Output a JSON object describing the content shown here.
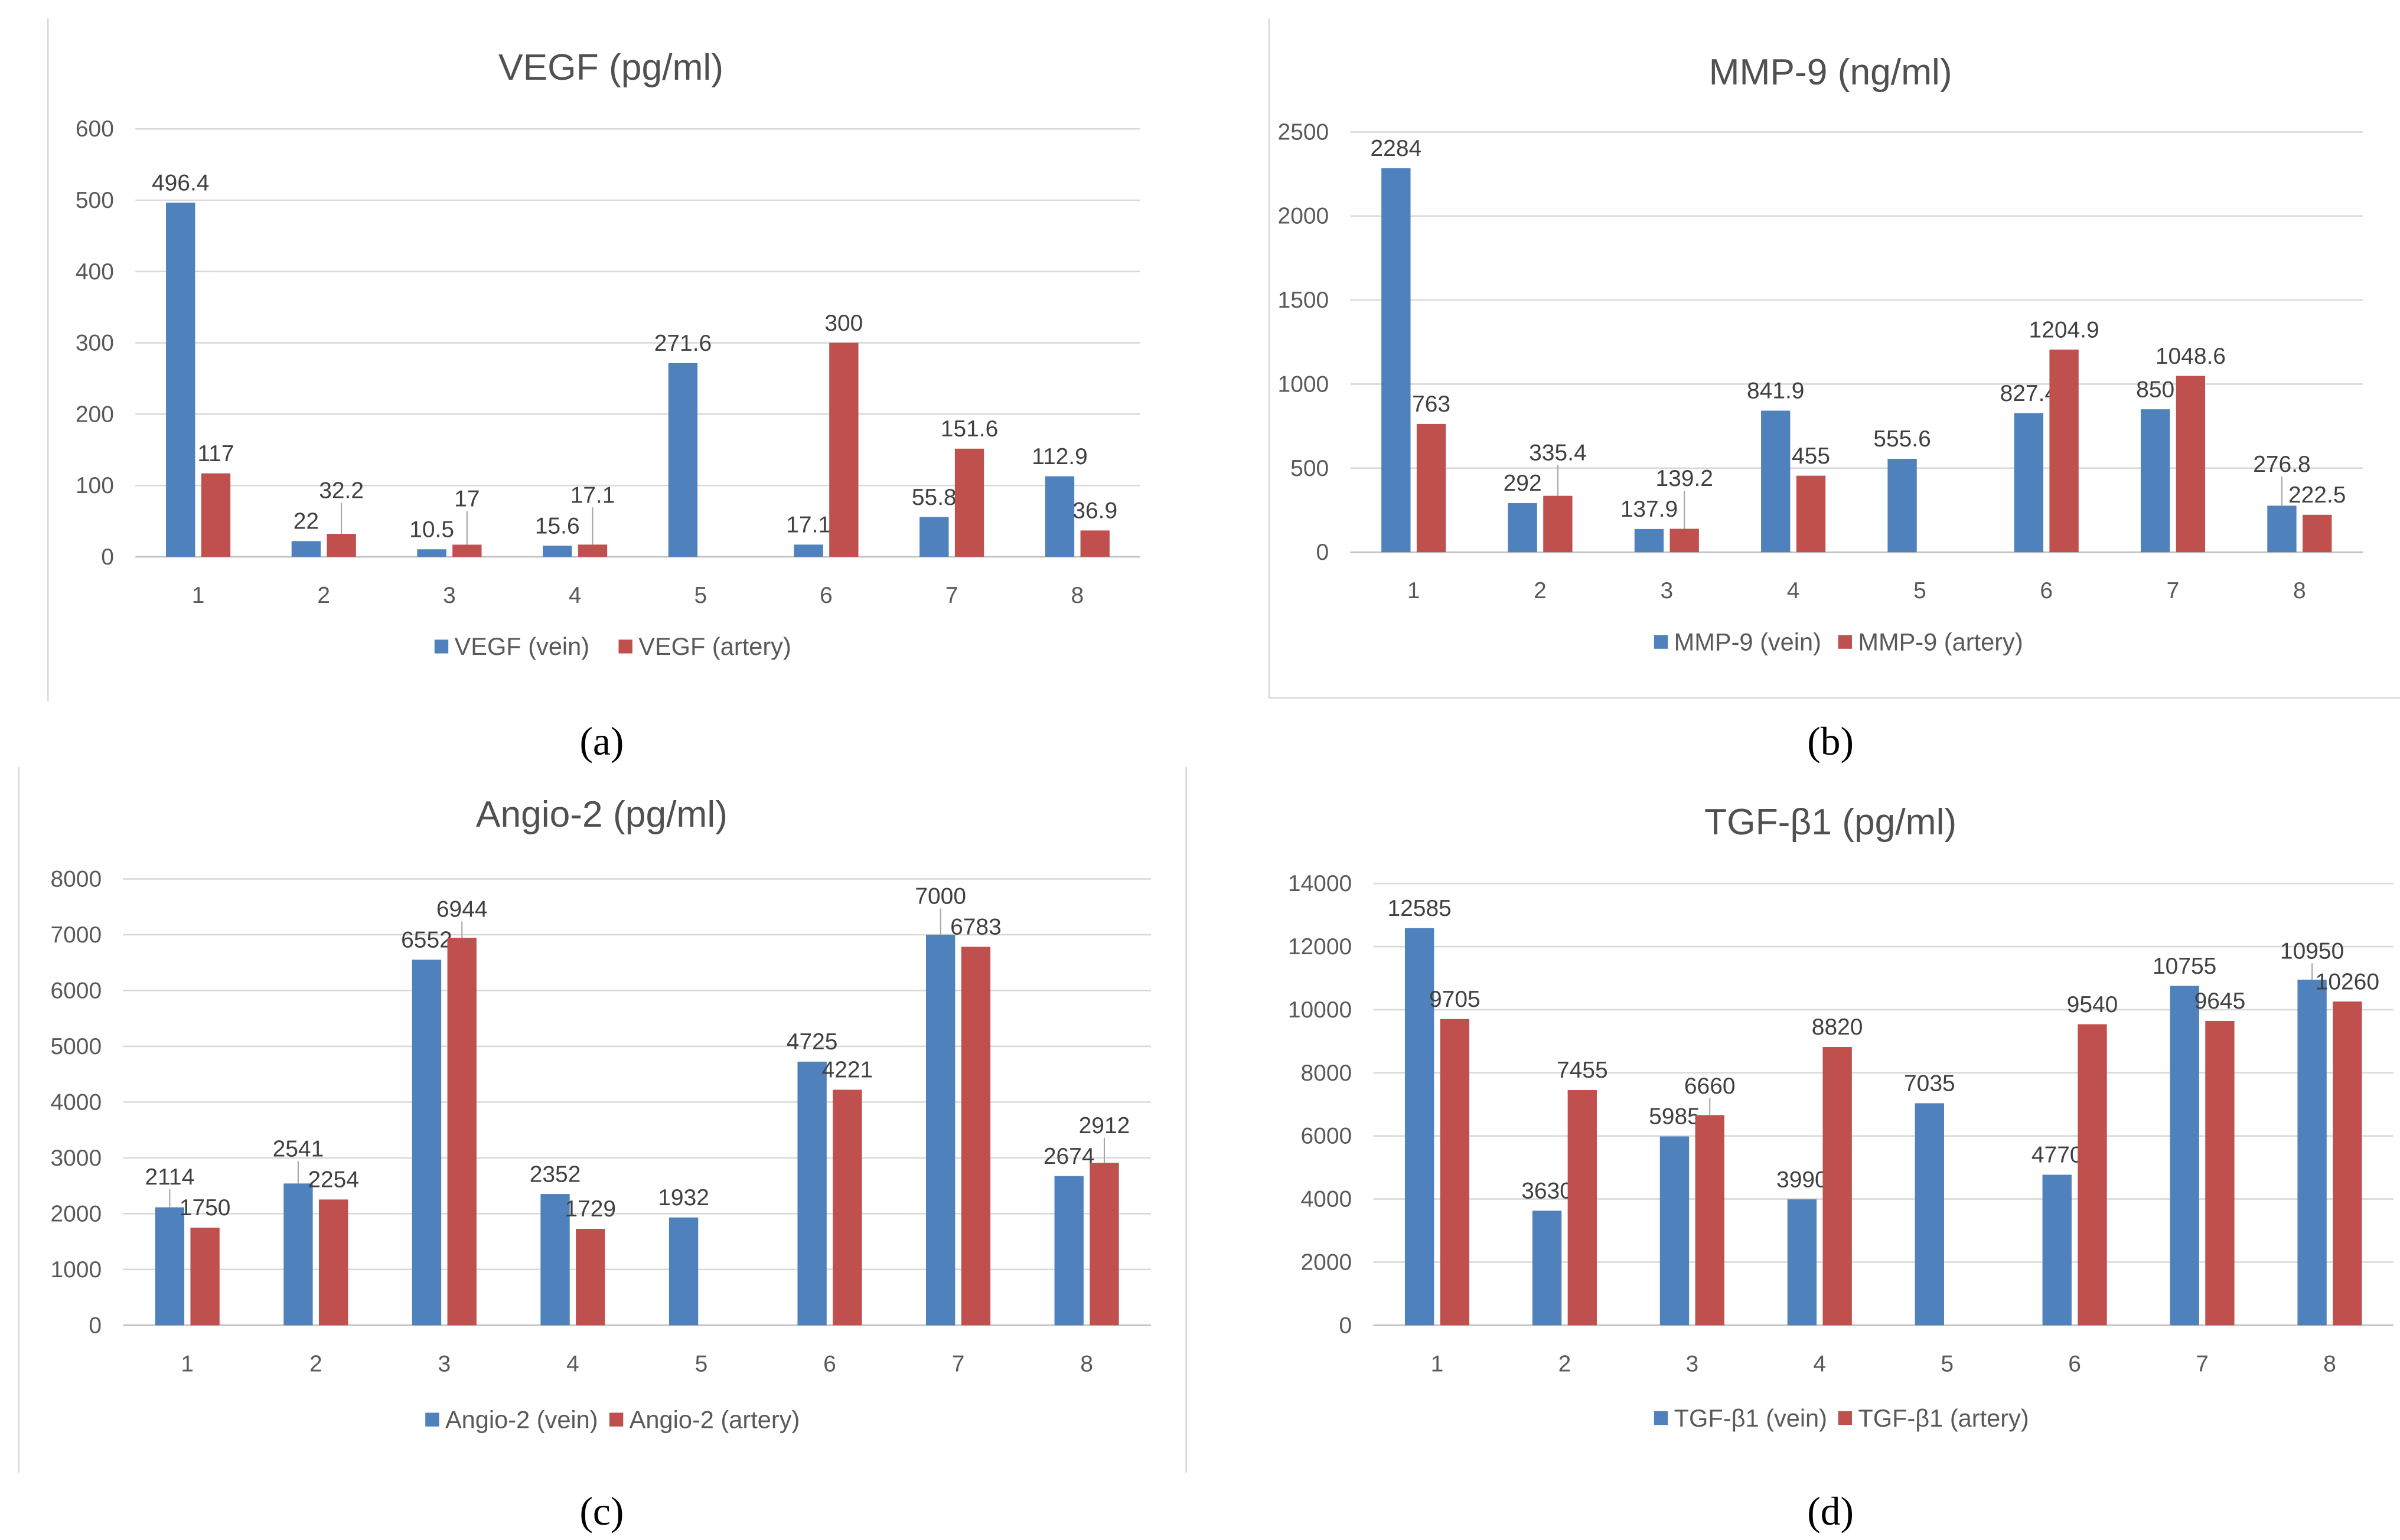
{
  "colors": {
    "vein": "#4f81bd",
    "artery": "#c0504d",
    "grid": "#d9d9d9"
  },
  "chart_data": [
    {
      "type": "bar",
      "panel": "(a)",
      "title": "VEGF (pg/ml)",
      "categories": [
        "1",
        "2",
        "3",
        "4",
        "5",
        "6",
        "7",
        "8"
      ],
      "ylim": [
        0,
        600
      ],
      "yticks": [
        "0",
        "100",
        "200",
        "300",
        "400",
        "500",
        "600"
      ],
      "ystep": 100,
      "grid": true,
      "legend_position": "bottom",
      "series": [
        {
          "name": "VEGF (vein)",
          "values": [
            496.4,
            22,
            10.5,
            15.6,
            271.6,
            17.1,
            55.8,
            112.9
          ],
          "labels": [
            "496.4",
            "22",
            "10.5",
            "15.6",
            "271.6",
            "17.1",
            "55.8",
            "112.9"
          ]
        },
        {
          "name": "VEGF (artery)",
          "values": [
            117,
            32.2,
            17,
            17.1,
            null,
            300,
            151.6,
            36.9
          ],
          "labels": [
            "117",
            "32.2",
            "17",
            "17.1",
            "",
            "300",
            "151.6",
            "36.9"
          ]
        }
      ]
    },
    {
      "type": "bar",
      "panel": "(b)",
      "title": "MMP-9 (ng/ml)",
      "categories": [
        "1",
        "2",
        "3",
        "4",
        "5",
        "6",
        "7",
        "8"
      ],
      "ylim": [
        0,
        2500
      ],
      "yticks": [
        "0",
        "500",
        "1000",
        "1500",
        "2000",
        "2500"
      ],
      "ystep": 500,
      "grid": true,
      "legend_position": "bottom",
      "series": [
        {
          "name": "MMP-9 (vein)",
          "values": [
            2284,
            292,
            137.9,
            841.9,
            555.6,
            827.4,
            850,
            276.8
          ],
          "labels": [
            "2284",
            "292",
            "137.9",
            "841.9",
            "555.6",
            "827.4",
            "850",
            "276.8"
          ]
        },
        {
          "name": "MMP-9 (artery)",
          "values": [
            763,
            335.4,
            139.2,
            455,
            null,
            1204.9,
            1048.6,
            222.5
          ],
          "labels": [
            "763",
            "335.4",
            "139.2",
            "455",
            "",
            "1204.9",
            "1048.6",
            "222.5"
          ]
        }
      ]
    },
    {
      "type": "bar",
      "panel": "(c)",
      "title": "Angio-2 (pg/ml)",
      "categories": [
        "1",
        "2",
        "3",
        "4",
        "5",
        "6",
        "7",
        "8"
      ],
      "ylim": [
        0,
        8000
      ],
      "yticks": [
        "0",
        "1000",
        "2000",
        "3000",
        "4000",
        "5000",
        "6000",
        "7000",
        "8000"
      ],
      "ystep": 1000,
      "grid": true,
      "legend_position": "bottom",
      "series": [
        {
          "name": "Angio-2 (vein)",
          "values": [
            2114,
            2541,
            6552,
            2352,
            1932,
            4725,
            7000,
            2674
          ],
          "labels": [
            "2114",
            "2541",
            "6552",
            "2352",
            "1932",
            "4725",
            "7000",
            "2674"
          ]
        },
        {
          "name": "Angio-2 (artery)",
          "values": [
            1750,
            2254,
            6944,
            1729,
            null,
            4221,
            6783,
            2912
          ],
          "labels": [
            "1750",
            "2254",
            "6944",
            "1729",
            "",
            "4221",
            "6783",
            "2912"
          ]
        }
      ]
    },
    {
      "type": "bar",
      "panel": "(d)",
      "title": "TGF-β1 (pg/ml)",
      "categories": [
        "1",
        "2",
        "3",
        "4",
        "5",
        "6",
        "7",
        "8"
      ],
      "ylim": [
        0,
        14000
      ],
      "yticks": [
        "0",
        "2000",
        "4000",
        "6000",
        "8000",
        "10000",
        "12000",
        "14000"
      ],
      "ystep": 2000,
      "grid": true,
      "legend_position": "bottom",
      "series": [
        {
          "name": "TGF-β1 (vein)",
          "values": [
            12585,
            3630,
            5985,
            3990,
            7035,
            4770,
            10755,
            10950
          ],
          "labels": [
            "12585",
            "3630",
            "5985",
            "3990",
            "7035",
            "4770",
            "10755",
            "10950"
          ]
        },
        {
          "name": "TGF-β1 (artery)",
          "values": [
            9705,
            7455,
            6660,
            8820,
            null,
            9540,
            9645,
            10260
          ],
          "labels": [
            "9705",
            "7455",
            "6660",
            "8820",
            "",
            "9540",
            "9645",
            "10260"
          ]
        }
      ]
    }
  ]
}
